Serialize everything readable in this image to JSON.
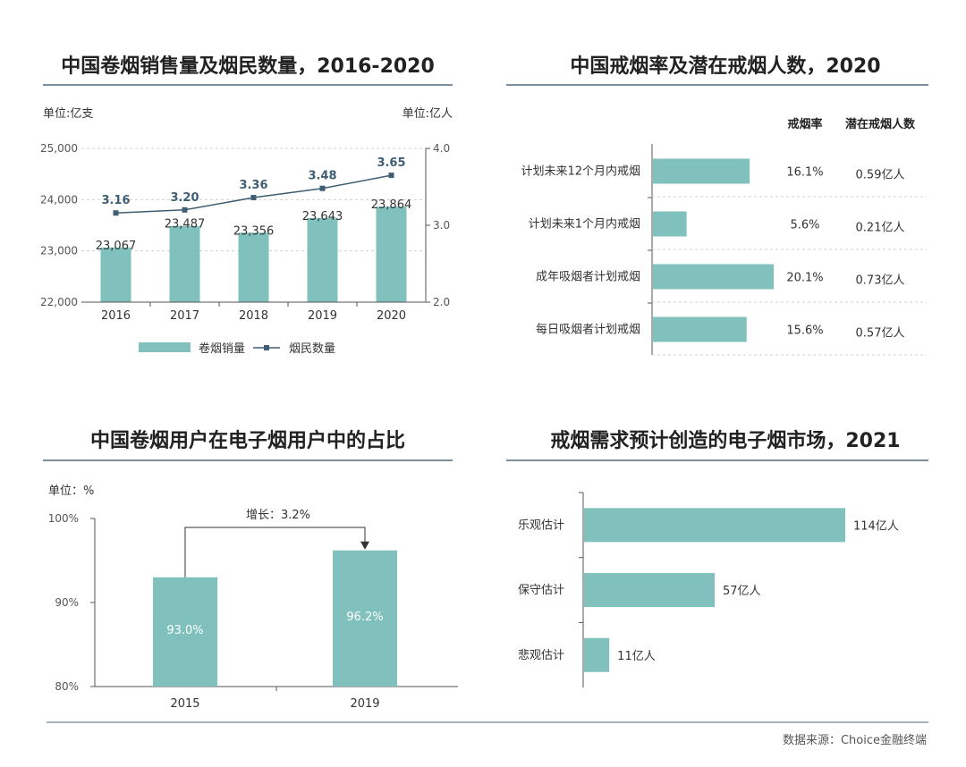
{
  "colors": {
    "bar": "#80c1bd",
    "line": "#3e5f73",
    "rule": "#4f6b7d",
    "axis": "#555555",
    "grid": "#d0d0d0"
  },
  "source": "数据来源：Choice金融终端",
  "chart_data": [
    {
      "type": "bar",
      "title": "中国卷烟销售量及烟民数量，2016-2020",
      "left_unit": "单位:亿支",
      "right_unit": "单位:亿人",
      "categories": [
        "2016",
        "2017",
        "2018",
        "2019",
        "2020"
      ],
      "left_ticks": [
        "22,000",
        "23,000",
        "24,000",
        "25,000"
      ],
      "right_ticks": [
        "2.0",
        "3.0",
        "4.0"
      ],
      "ylim_left": [
        22000,
        25000
      ],
      "ylim_right": [
        2.0,
        4.0
      ],
      "series": [
        {
          "name": "卷烟销量",
          "type": "bar",
          "axis": "left",
          "values": [
            23067,
            23487,
            23356,
            23643,
            23864
          ],
          "labels": [
            "23,067",
            "23,487",
            "23,356",
            "23,643",
            "23,864"
          ]
        },
        {
          "name": "烟民数量",
          "type": "line",
          "axis": "right",
          "values": [
            3.16,
            3.2,
            3.36,
            3.48,
            3.65
          ],
          "labels": [
            "3.16",
            "3.20",
            "3.36",
            "3.48",
            "3.65"
          ]
        }
      ],
      "legend": "bottom"
    },
    {
      "type": "bar",
      "orientation": "horizontal",
      "title": "中国戒烟率及潜在戒烟人数，2020",
      "col_headers": [
        "戒烟率",
        "潜在戒烟人数"
      ],
      "categories": [
        "计划未来12个月内戒烟",
        "计划未来1个月内戒烟",
        "成年吸烟者计划戒烟",
        "每日吸烟者计划戒烟"
      ],
      "values": [
        16.1,
        5.6,
        20.1,
        15.6
      ],
      "rate_labels": [
        "16.1%",
        "5.6%",
        "20.1%",
        "15.6%"
      ],
      "people_labels": [
        "0.59亿人",
        "0.21亿人",
        "0.73亿人",
        "0.57亿人"
      ],
      "xlim": [
        0,
        20.1
      ]
    },
    {
      "type": "bar",
      "title": "中国卷烟用户在电子烟用户中的占比",
      "unit": "单位：%",
      "categories": [
        "2015",
        "2019"
      ],
      "values": [
        93.0,
        96.2
      ],
      "labels": [
        "93.0%",
        "96.2%"
      ],
      "ylim": [
        80,
        100
      ],
      "y_ticks": [
        "80%",
        "90%",
        "100%"
      ],
      "annotation": "增长：3.2%"
    },
    {
      "type": "bar",
      "orientation": "horizontal",
      "title": "戒烟需求预计创造的电子烟市场，2021",
      "categories": [
        "乐观估计",
        "保守估计",
        "悲观估计"
      ],
      "values": [
        114,
        57,
        11
      ],
      "labels": [
        "114亿人",
        "57亿人",
        "11亿人"
      ],
      "xlim": [
        0,
        114
      ]
    }
  ]
}
